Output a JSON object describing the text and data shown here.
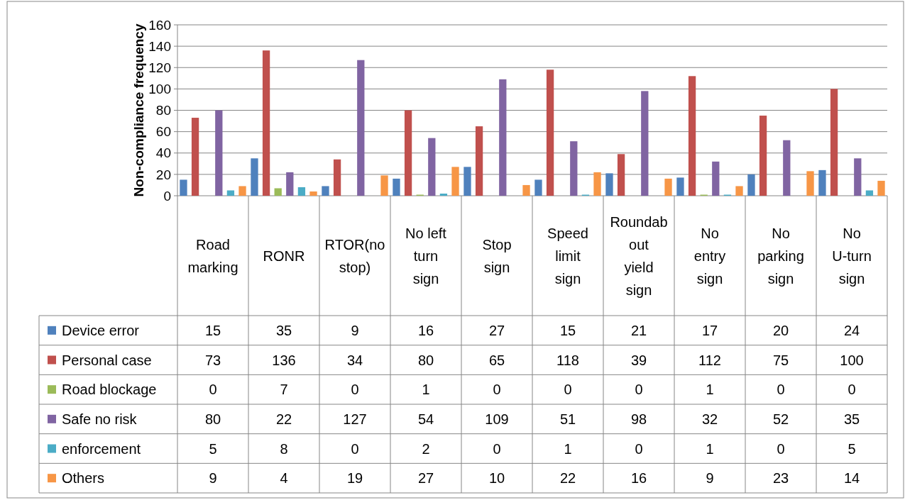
{
  "chart_data": {
    "type": "bar",
    "ylabel": "Non-compliance frequency",
    "categories": [
      "Road marking",
      "RONR",
      "RTOR(no stop)",
      "No left turn sign",
      "Stop sign",
      "Speed limit sign",
      "Roundabout yield sign",
      "No entry sign",
      "No parking sign",
      "No U-turn sign"
    ],
    "series": [
      {
        "name": "Device error",
        "color": "#4f81bd",
        "values": [
          15,
          35,
          9,
          16,
          27,
          15,
          21,
          17,
          20,
          24
        ]
      },
      {
        "name": "Personal case",
        "color": "#c0504d",
        "values": [
          73,
          136,
          34,
          80,
          65,
          118,
          39,
          112,
          75,
          100
        ]
      },
      {
        "name": "Road blockage",
        "color": "#9bbb59",
        "values": [
          0,
          7,
          0,
          1,
          0,
          0,
          0,
          1,
          0,
          0
        ]
      },
      {
        "name": "Safe no risk",
        "color": "#8064a2",
        "values": [
          80,
          22,
          127,
          54,
          109,
          51,
          98,
          32,
          52,
          35
        ]
      },
      {
        "name": "enforcement",
        "color": "#4bacc6",
        "values": [
          5,
          8,
          0,
          2,
          0,
          1,
          0,
          1,
          0,
          5
        ]
      },
      {
        "name": "Others",
        "color": "#f79646",
        "values": [
          9,
          4,
          19,
          27,
          10,
          22,
          16,
          9,
          23,
          14
        ]
      }
    ],
    "ylim": [
      0,
      160
    ],
    "yticks": [
      0,
      20,
      40,
      60,
      80,
      100,
      120,
      140,
      160
    ],
    "grid": "y",
    "legend": "bottom",
    "data_labels": true
  }
}
